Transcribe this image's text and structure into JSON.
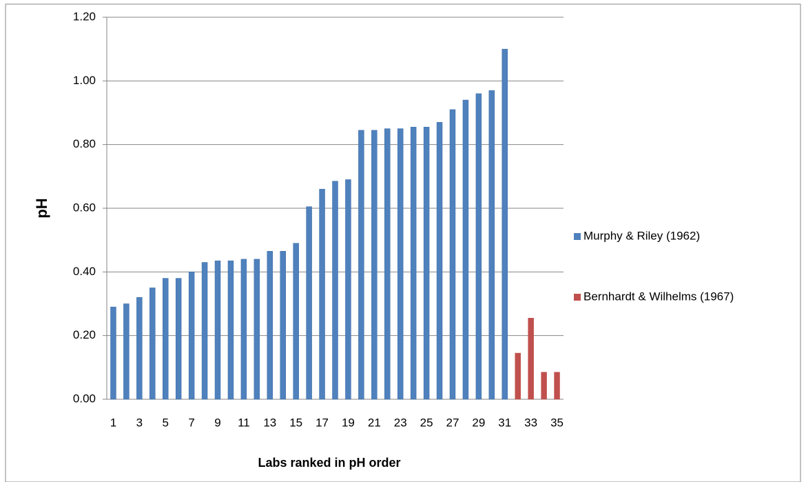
{
  "chart_data": {
    "type": "bar",
    "y_label": "pH",
    "x_label": "Labs ranked in pH order",
    "categories": [
      "1",
      null,
      "3",
      null,
      "5",
      null,
      "7",
      null,
      "9",
      null,
      "11",
      null,
      "13",
      null,
      "15",
      null,
      "17",
      null,
      "19",
      null,
      "21",
      null,
      "23",
      null,
      "25",
      null,
      "27",
      null,
      "29",
      null,
      "31",
      null,
      "33",
      null,
      "35"
    ],
    "series": [
      {
        "name": "Murphy & Riley (1962)",
        "color": "#4f81bd",
        "values": [
          0.29,
          0.3,
          0.32,
          0.35,
          0.38,
          0.38,
          0.4,
          0.43,
          0.435,
          0.435,
          0.44,
          0.44,
          0.465,
          0.465,
          0.49,
          0.605,
          0.66,
          0.685,
          0.69,
          0.845,
          0.845,
          0.85,
          0.85,
          0.855,
          0.855,
          0.87,
          0.91,
          0.94,
          0.96,
          0.97,
          1.1,
          null,
          null,
          null,
          null
        ]
      },
      {
        "name": "Bernhardt & Wilhelms (1967)",
        "color": "#c0504d",
        "values": [
          null,
          null,
          null,
          null,
          null,
          null,
          null,
          null,
          null,
          null,
          null,
          null,
          null,
          null,
          null,
          null,
          null,
          null,
          null,
          null,
          null,
          null,
          null,
          null,
          null,
          null,
          null,
          null,
          null,
          null,
          null,
          0.145,
          0.255,
          0.085,
          0.085
        ]
      }
    ],
    "ylim": [
      0,
      1.2
    ],
    "yticks": [
      {
        "value": 0,
        "label": "0.00"
      },
      {
        "value": 0.2,
        "label": "0.20"
      },
      {
        "value": 0.4,
        "label": "0.40"
      },
      {
        "value": 0.6,
        "label": "0.60"
      },
      {
        "value": 0.8,
        "label": "0.80"
      },
      {
        "value": 1.0,
        "label": "1.00"
      },
      {
        "value": 1.2,
        "label": "1.20"
      }
    ],
    "grid": true,
    "legend": "right"
  }
}
